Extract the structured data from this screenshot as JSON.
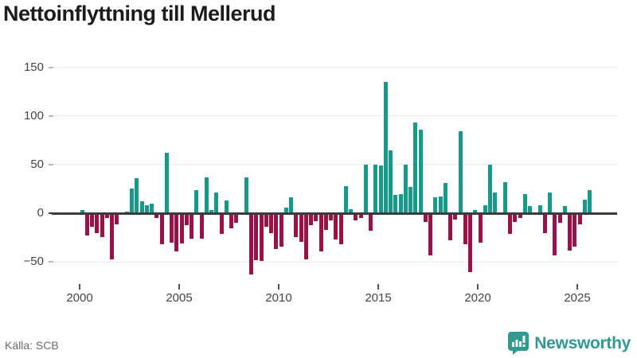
{
  "title": "Nettoinflyttning till Mellerud",
  "source": "Källa: SCB",
  "brand": {
    "name": "Newsworthy",
    "color": "#2f9a90",
    "icon": "bar-chart-bubble-icon"
  },
  "colors": {
    "positive": "#149b8c",
    "negative": "#9c1048",
    "grid": "#e9e9e9",
    "zero_line": "#3b3b3b",
    "axis_text": "#444444"
  },
  "chart_data": {
    "type": "bar",
    "title": "Nettoinflyttning till Mellerud",
    "period": "quarterly",
    "start_year": 2000,
    "start_quarter": 1,
    "x_tick_years": [
      2000,
      2005,
      2010,
      2015,
      2020,
      2025
    ],
    "x_tick_labels": [
      "2000",
      "2005",
      "2010",
      "2015",
      "2020",
      "2025"
    ],
    "y_ticks": [
      150,
      100,
      50,
      0,
      -50
    ],
    "y_tick_labels": [
      "150",
      "100",
      "50",
      "0",
      "−50"
    ],
    "ylim": [
      -65,
      155
    ],
    "grid": true,
    "values": [
      3,
      -22,
      -13,
      -19,
      -23,
      -4,
      -46,
      -10,
      0,
      2,
      25,
      36,
      12,
      8,
      10,
      -4,
      -31,
      62,
      -29,
      -38,
      -30,
      -11,
      -25,
      24,
      -25,
      37,
      3,
      21,
      -20,
      13,
      -14,
      -9,
      0,
      37,
      -62,
      -47,
      -48,
      -13,
      -19,
      -36,
      -33,
      6,
      16,
      -23,
      -28,
      -46,
      -11,
      -7,
      -38,
      -16,
      -6,
      -26,
      -31,
      28,
      4,
      -6,
      -4,
      50,
      -17,
      50,
      49,
      135,
      65,
      19,
      20,
      50,
      27,
      93,
      86,
      -8,
      -42,
      16,
      17,
      31,
      -27,
      -5,
      84,
      -31,
      -59,
      3,
      -29,
      8,
      50,
      21,
      0,
      32,
      -20,
      -8,
      -4,
      20,
      7,
      0,
      8,
      -19,
      21,
      -42,
      -9,
      7,
      -37,
      -33,
      -10,
      14,
      24
    ]
  }
}
